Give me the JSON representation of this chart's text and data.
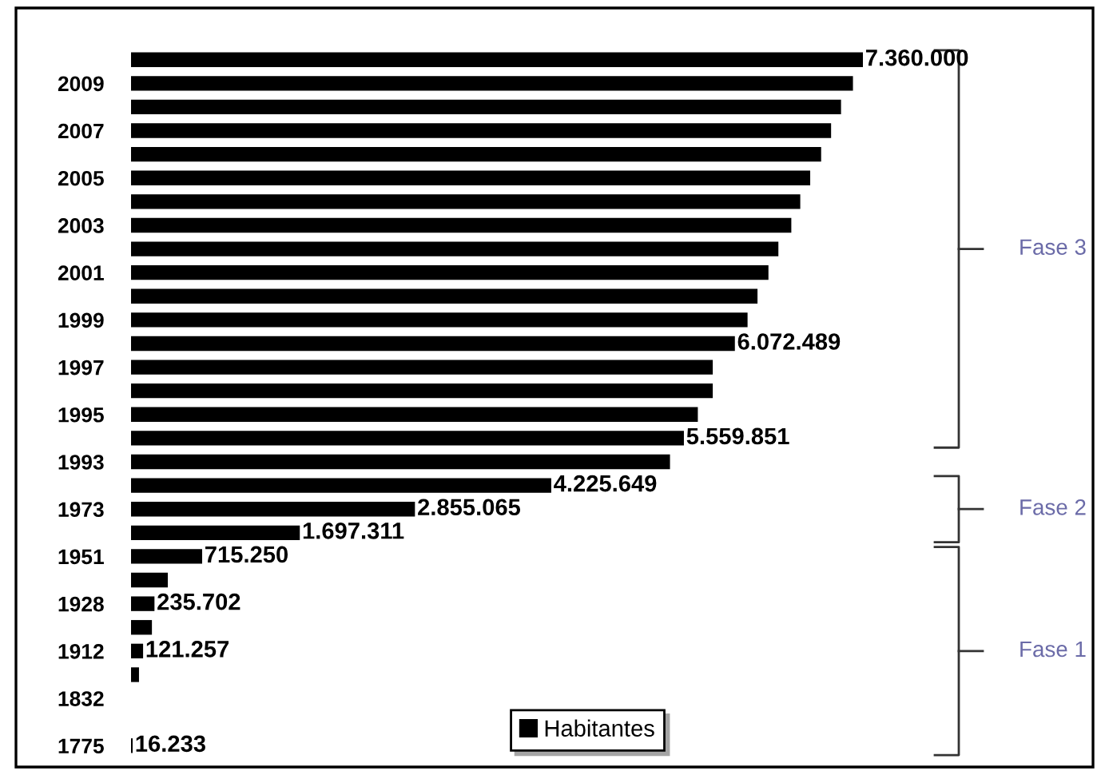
{
  "chart_data": {
    "type": "bar",
    "orientation": "horizontal",
    "legend": "bottom",
    "categories": [
      null,
      "2009",
      null,
      "2007",
      null,
      "2005",
      null,
      "2003",
      null,
      "2001",
      null,
      "1999",
      null,
      "1997",
      null,
      "1995",
      null,
      "1993",
      null,
      "1973",
      null,
      "1951",
      null,
      "1928",
      null,
      "1912",
      null,
      "1832",
      null,
      "1775"
    ],
    "series": [
      {
        "name": "Habitantes",
        "color": "#000000",
        "values": [
          7360000,
          7260000,
          7140000,
          7040000,
          6940000,
          6830000,
          6730000,
          6640000,
          6510000,
          6410000,
          6300000,
          6200000,
          6072489,
          5850000,
          5850000,
          5700000,
          5559851,
          5420000,
          4225649,
          2855065,
          1697311,
          715250,
          370000,
          235702,
          210000,
          121257,
          80000,
          null,
          null,
          16233
        ],
        "value_labels": [
          "7.360.000",
          null,
          null,
          null,
          null,
          null,
          null,
          null,
          null,
          null,
          null,
          null,
          "6.072.489",
          null,
          null,
          null,
          "5.559.851",
          null,
          "4.225.649",
          "2.855.065",
          "1.697.311",
          "715.250",
          null,
          "235.702",
          null,
          "121.257",
          null,
          null,
          null,
          "16.233"
        ]
      }
    ],
    "annotations": [
      "Fase 3",
      "Fase 2",
      "Fase 1"
    ]
  }
}
